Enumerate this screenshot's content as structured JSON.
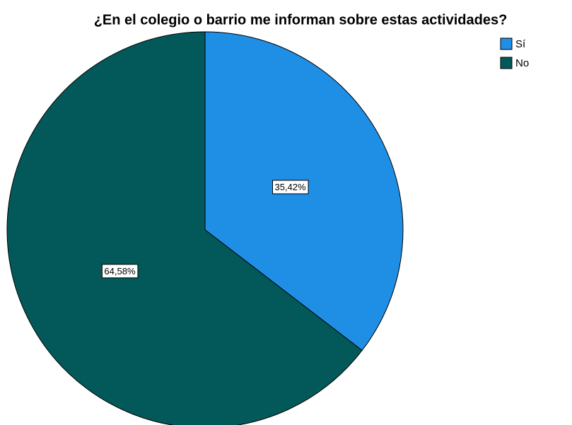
{
  "chart_data": {
    "type": "pie",
    "title": "¿En el colegio o barrio me informan sobre estas actividades?",
    "categories": [
      "Sí",
      "No"
    ],
    "values": [
      35.42,
      64.58
    ],
    "value_labels": [
      "35,42%",
      "64,58%"
    ],
    "colors": [
      "#1f8fe6",
      "#03595a"
    ],
    "legend": "top-right"
  }
}
